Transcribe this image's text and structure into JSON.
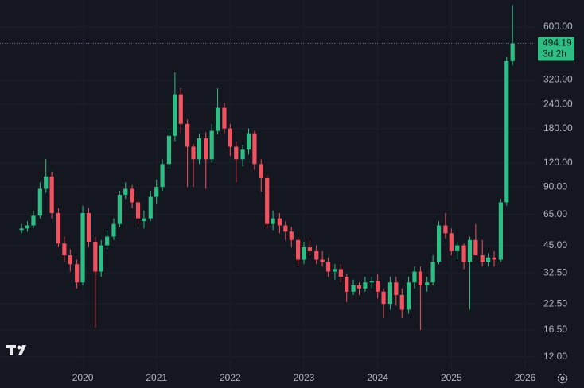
{
  "chart_data": {
    "type": "candlestick",
    "log_scale": true,
    "grid": true,
    "up_color": "#2ebd85",
    "down_color": "#f0525f",
    "xlim": [
      2018.877,
      2026.13
    ],
    "xticks": [
      2020,
      2021,
      2022,
      2023,
      2024,
      2025,
      2026
    ],
    "ylim": [
      10.3,
      826
    ],
    "yticks": [
      {
        "value": 12,
        "label": "12.00"
      },
      {
        "value": 16.5,
        "label": "16.50"
      },
      {
        "value": 22.5,
        "label": "22.50"
      },
      {
        "value": 32.5,
        "label": "32.50"
      },
      {
        "value": 45,
        "label": "45.00"
      },
      {
        "value": 65,
        "label": "65.00"
      },
      {
        "value": 90,
        "label": "90.00"
      },
      {
        "value": 120,
        "label": "120.00"
      },
      {
        "value": 180,
        "label": "180.00"
      },
      {
        "value": 240,
        "label": "240.00"
      },
      {
        "value": 320,
        "label": "320.00"
      },
      {
        "value": 600,
        "label": "600.00"
      }
    ],
    "price_label": {
      "value": 494.19,
      "countdown": "3d 2h"
    },
    "x": [
      2019.17,
      2019.25,
      2019.33,
      2019.42,
      2019.5,
      2019.58,
      2019.67,
      2019.75,
      2019.83,
      2019.92,
      2020.0,
      2020.08,
      2020.17,
      2020.25,
      2020.33,
      2020.42,
      2020.5,
      2020.58,
      2020.67,
      2020.75,
      2020.83,
      2020.92,
      2021.0,
      2021.08,
      2021.17,
      2021.25,
      2021.33,
      2021.42,
      2021.5,
      2021.58,
      2021.67,
      2021.75,
      2021.83,
      2021.92,
      2022.0,
      2022.08,
      2022.17,
      2022.25,
      2022.33,
      2022.42,
      2022.5,
      2022.58,
      2022.67,
      2022.75,
      2022.83,
      2022.92,
      2023.0,
      2023.08,
      2023.17,
      2023.25,
      2023.33,
      2023.42,
      2023.5,
      2023.58,
      2023.67,
      2023.75,
      2023.83,
      2023.92,
      2024.0,
      2024.08,
      2024.17,
      2024.25,
      2024.33,
      2024.42,
      2024.5,
      2024.58,
      2024.67,
      2024.75,
      2024.83,
      2024.92,
      2025.0,
      2025.08,
      2025.17,
      2025.25,
      2025.33,
      2025.42,
      2025.5,
      2025.58,
      2025.67,
      2025.75,
      2025.83
    ],
    "open": [
      54,
      55,
      57,
      64,
      88,
      102,
      66,
      46,
      40,
      36,
      29,
      66,
      47,
      33,
      45,
      50,
      58,
      82,
      88,
      75,
      60,
      62,
      80,
      90,
      118,
      165,
      270,
      190,
      145,
      125,
      160,
      125,
      175,
      230,
      180,
      145,
      125,
      140,
      170,
      118,
      100,
      58,
      62,
      57,
      53,
      48,
      38,
      44,
      42,
      38,
      37,
      33,
      34,
      31,
      26,
      28,
      27,
      29,
      29.5,
      26,
      22.5,
      29,
      25,
      21,
      29,
      33,
      28,
      29,
      37,
      57,
      52,
      42,
      45,
      37,
      48,
      40,
      37,
      39,
      38,
      75,
      400
    ],
    "high": [
      58,
      60,
      68,
      95,
      125,
      108,
      70,
      50,
      43,
      38,
      72,
      70,
      50,
      48,
      54,
      62,
      86,
      95,
      92,
      78,
      68,
      86,
      98,
      125,
      180,
      350,
      290,
      200,
      150,
      170,
      172,
      190,
      290,
      245,
      190,
      155,
      148,
      180,
      175,
      125,
      104,
      68,
      66,
      60,
      56,
      50,
      47,
      48,
      45,
      42,
      39,
      36,
      36,
      32,
      30,
      29,
      31,
      31,
      32,
      27,
      31,
      31,
      27,
      31,
      35,
      35,
      31,
      40,
      60,
      66,
      55,
      47,
      46,
      50,
      58,
      48,
      41,
      42,
      78,
      420,
      780
    ],
    "low": [
      52,
      53,
      55,
      62,
      84,
      62,
      44,
      37,
      33,
      27,
      28,
      44,
      17,
      31,
      43,
      48,
      56,
      78,
      70,
      58,
      55,
      60,
      74,
      86,
      112,
      155,
      170,
      90,
      90,
      118,
      88,
      120,
      168,
      170,
      130,
      95,
      115,
      132,
      110,
      85,
      55,
      54,
      52,
      48,
      44,
      35,
      36,
      40,
      36,
      35,
      31,
      30,
      29,
      23,
      25,
      25,
      26,
      27,
      24,
      19,
      21,
      22,
      19,
      20,
      27,
      16.5,
      26,
      28,
      36,
      49,
      40,
      38,
      34,
      21,
      40,
      35,
      35,
      35,
      37,
      72,
      380
    ],
    "close": [
      55,
      57,
      64,
      88,
      102,
      66,
      46,
      40,
      36,
      29,
      66,
      47,
      33,
      45,
      50,
      58,
      82,
      88,
      75,
      62,
      62,
      80,
      90,
      118,
      165,
      270,
      190,
      145,
      125,
      160,
      125,
      175,
      230,
      180,
      145,
      125,
      140,
      170,
      118,
      100,
      58,
      62,
      57,
      53,
      48,
      38,
      44,
      42,
      38,
      37,
      33,
      34,
      31,
      26,
      28,
      27,
      29,
      29.5,
      26,
      22.5,
      29,
      25,
      21,
      29,
      33,
      28,
      29,
      37,
      57,
      52,
      42,
      45,
      37,
      48,
      40,
      37,
      39,
      38,
      75,
      400,
      494.19
    ]
  }
}
